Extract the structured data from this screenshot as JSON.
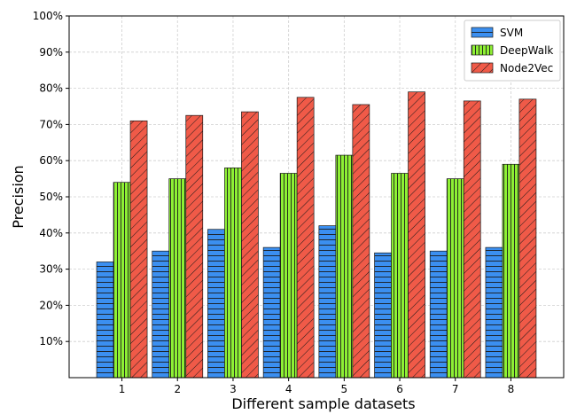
{
  "chart_data": {
    "type": "bar",
    "title": "",
    "xlabel": "Different sample datasets",
    "ylabel": "Precision",
    "categories": [
      "1",
      "2",
      "3",
      "4",
      "5",
      "6",
      "7",
      "8"
    ],
    "series": [
      {
        "name": "SVM",
        "values": [
          32,
          35,
          41,
          36,
          42,
          34.5,
          35,
          36
        ],
        "color": "#3b8ff0",
        "hatch": "horizontal"
      },
      {
        "name": "DeepWalk",
        "values": [
          54,
          55,
          58,
          56.5,
          61.5,
          56.5,
          55,
          59
        ],
        "color": "#8ef034",
        "hatch": "vertical"
      },
      {
        "name": "Node2Vec",
        "values": [
          71,
          72.5,
          73.5,
          77.5,
          75.5,
          79,
          76.5,
          77
        ],
        "color": "#f05a48",
        "hatch": "diagonal"
      }
    ],
    "ylim": [
      0,
      100
    ],
    "yticks": [
      10,
      20,
      30,
      40,
      50,
      60,
      70,
      80,
      90,
      100
    ],
    "ytick_labels": [
      "10%",
      "20%",
      "30%",
      "40%",
      "50%",
      "60%",
      "70%",
      "80%",
      "90%",
      "100%"
    ],
    "grid": true,
    "legend_position": "top-right"
  }
}
